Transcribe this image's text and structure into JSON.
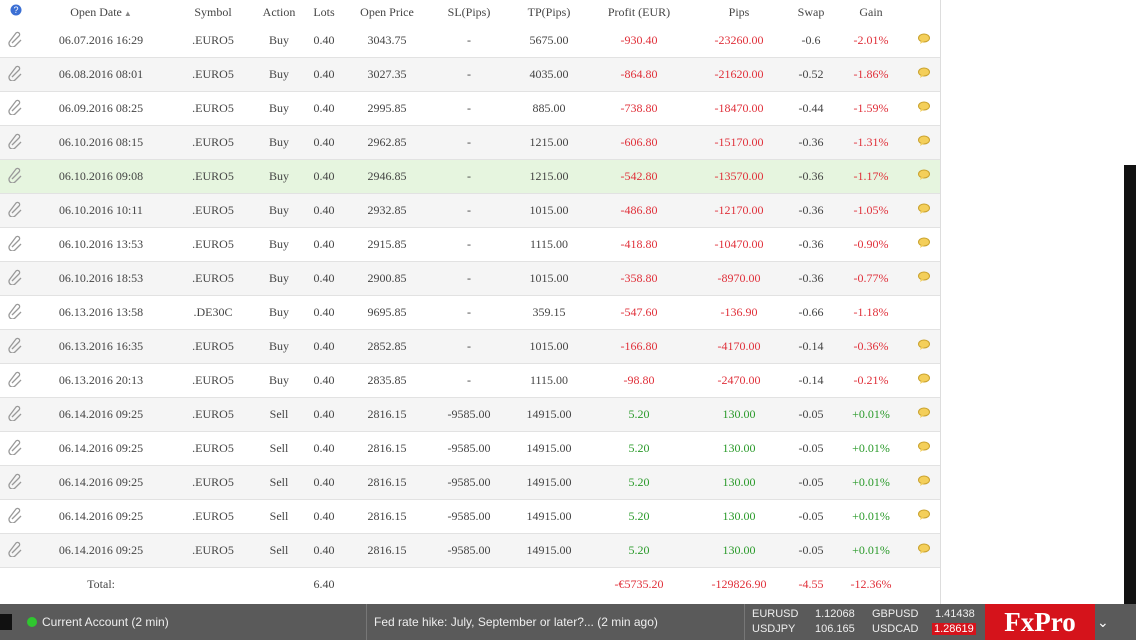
{
  "table": {
    "columns": [
      "Open Date",
      "Symbol",
      "Action",
      "Lots",
      "Open Price",
      "SL(Pips)",
      "TP(Pips)",
      "Profit (EUR)",
      "Pips",
      "Swap",
      "Gain"
    ],
    "rows": [
      [
        "06.07.2016 16:29",
        ".EURO5",
        "Buy",
        "0.40",
        "3043.75",
        "-",
        "5675.00",
        "-930.40",
        "-23260.00",
        "-0.6",
        "-2.01%"
      ],
      [
        "06.08.2016 08:01",
        ".EURO5",
        "Buy",
        "0.40",
        "3027.35",
        "-",
        "4035.00",
        "-864.80",
        "-21620.00",
        "-0.52",
        "-1.86%"
      ],
      [
        "06.09.2016 08:25",
        ".EURO5",
        "Buy",
        "0.40",
        "2995.85",
        "-",
        "885.00",
        "-738.80",
        "-18470.00",
        "-0.44",
        "-1.59%"
      ],
      [
        "06.10.2016 08:15",
        ".EURO5",
        "Buy",
        "0.40",
        "2962.85",
        "-",
        "1215.00",
        "-606.80",
        "-15170.00",
        "-0.36",
        "-1.31%"
      ],
      [
        "06.10.2016 09:08",
        ".EURO5",
        "Buy",
        "0.40",
        "2946.85",
        "-",
        "1215.00",
        "-542.80",
        "-13570.00",
        "-0.36",
        "-1.17%"
      ],
      [
        "06.10.2016 10:11",
        ".EURO5",
        "Buy",
        "0.40",
        "2932.85",
        "-",
        "1015.00",
        "-486.80",
        "-12170.00",
        "-0.36",
        "-1.05%"
      ],
      [
        "06.10.2016 13:53",
        ".EURO5",
        "Buy",
        "0.40",
        "2915.85",
        "-",
        "1115.00",
        "-418.80",
        "-10470.00",
        "-0.36",
        "-0.90%"
      ],
      [
        "06.10.2016 18:53",
        ".EURO5",
        "Buy",
        "0.40",
        "2900.85",
        "-",
        "1015.00",
        "-358.80",
        "-8970.00",
        "-0.36",
        "-0.77%"
      ],
      [
        "06.13.2016 13:58",
        ".DE30C",
        "Buy",
        "0.40",
        "9695.85",
        "-",
        "359.15",
        "-547.60",
        "-136.90",
        "-0.66",
        "-1.18%"
      ],
      [
        "06.13.2016 16:35",
        ".EURO5",
        "Buy",
        "0.40",
        "2852.85",
        "-",
        "1015.00",
        "-166.80",
        "-4170.00",
        "-0.14",
        "-0.36%"
      ],
      [
        "06.13.2016 20:13",
        ".EURO5",
        "Buy",
        "0.40",
        "2835.85",
        "-",
        "1115.00",
        "-98.80",
        "-2470.00",
        "-0.14",
        "-0.21%"
      ],
      [
        "06.14.2016 09:25",
        ".EURO5",
        "Sell",
        "0.40",
        "2816.15",
        "-9585.00",
        "14915.00",
        "5.20",
        "130.00",
        "-0.05",
        "+0.01%"
      ],
      [
        "06.14.2016 09:25",
        ".EURO5",
        "Sell",
        "0.40",
        "2816.15",
        "-9585.00",
        "14915.00",
        "5.20",
        "130.00",
        "-0.05",
        "+0.01%"
      ],
      [
        "06.14.2016 09:25",
        ".EURO5",
        "Sell",
        "0.40",
        "2816.15",
        "-9585.00",
        "14915.00",
        "5.20",
        "130.00",
        "-0.05",
        "+0.01%"
      ],
      [
        "06.14.2016 09:25",
        ".EURO5",
        "Sell",
        "0.40",
        "2816.15",
        "-9585.00",
        "14915.00",
        "5.20",
        "130.00",
        "-0.05",
        "+0.01%"
      ],
      [
        "06.14.2016 09:25",
        ".EURO5",
        "Sell",
        "0.40",
        "2816.15",
        "-9585.00",
        "14915.00",
        "5.20",
        "130.00",
        "-0.05",
        "+0.01%"
      ]
    ]
  },
  "total": {
    "label": "Total:",
    "lots": "6.40",
    "profit": "-€5735.20",
    "pips": "-129826.90",
    "swap": "-4.55",
    "gain": "-12.36%"
  },
  "status": {
    "account": "Current Account (2 min)",
    "news": "Fed rate hike: July, September or later?... (2 min ago)",
    "quotes": [
      {
        "symbol": "EURUSD",
        "price": "1.12068"
      },
      {
        "symbol": "GBPUSD",
        "price": "1.41438"
      },
      {
        "symbol": "USDJPY",
        "price": "106.165"
      },
      {
        "symbol": "USDCAD",
        "price": "1.28619"
      }
    ],
    "logo": "FxPro"
  }
}
